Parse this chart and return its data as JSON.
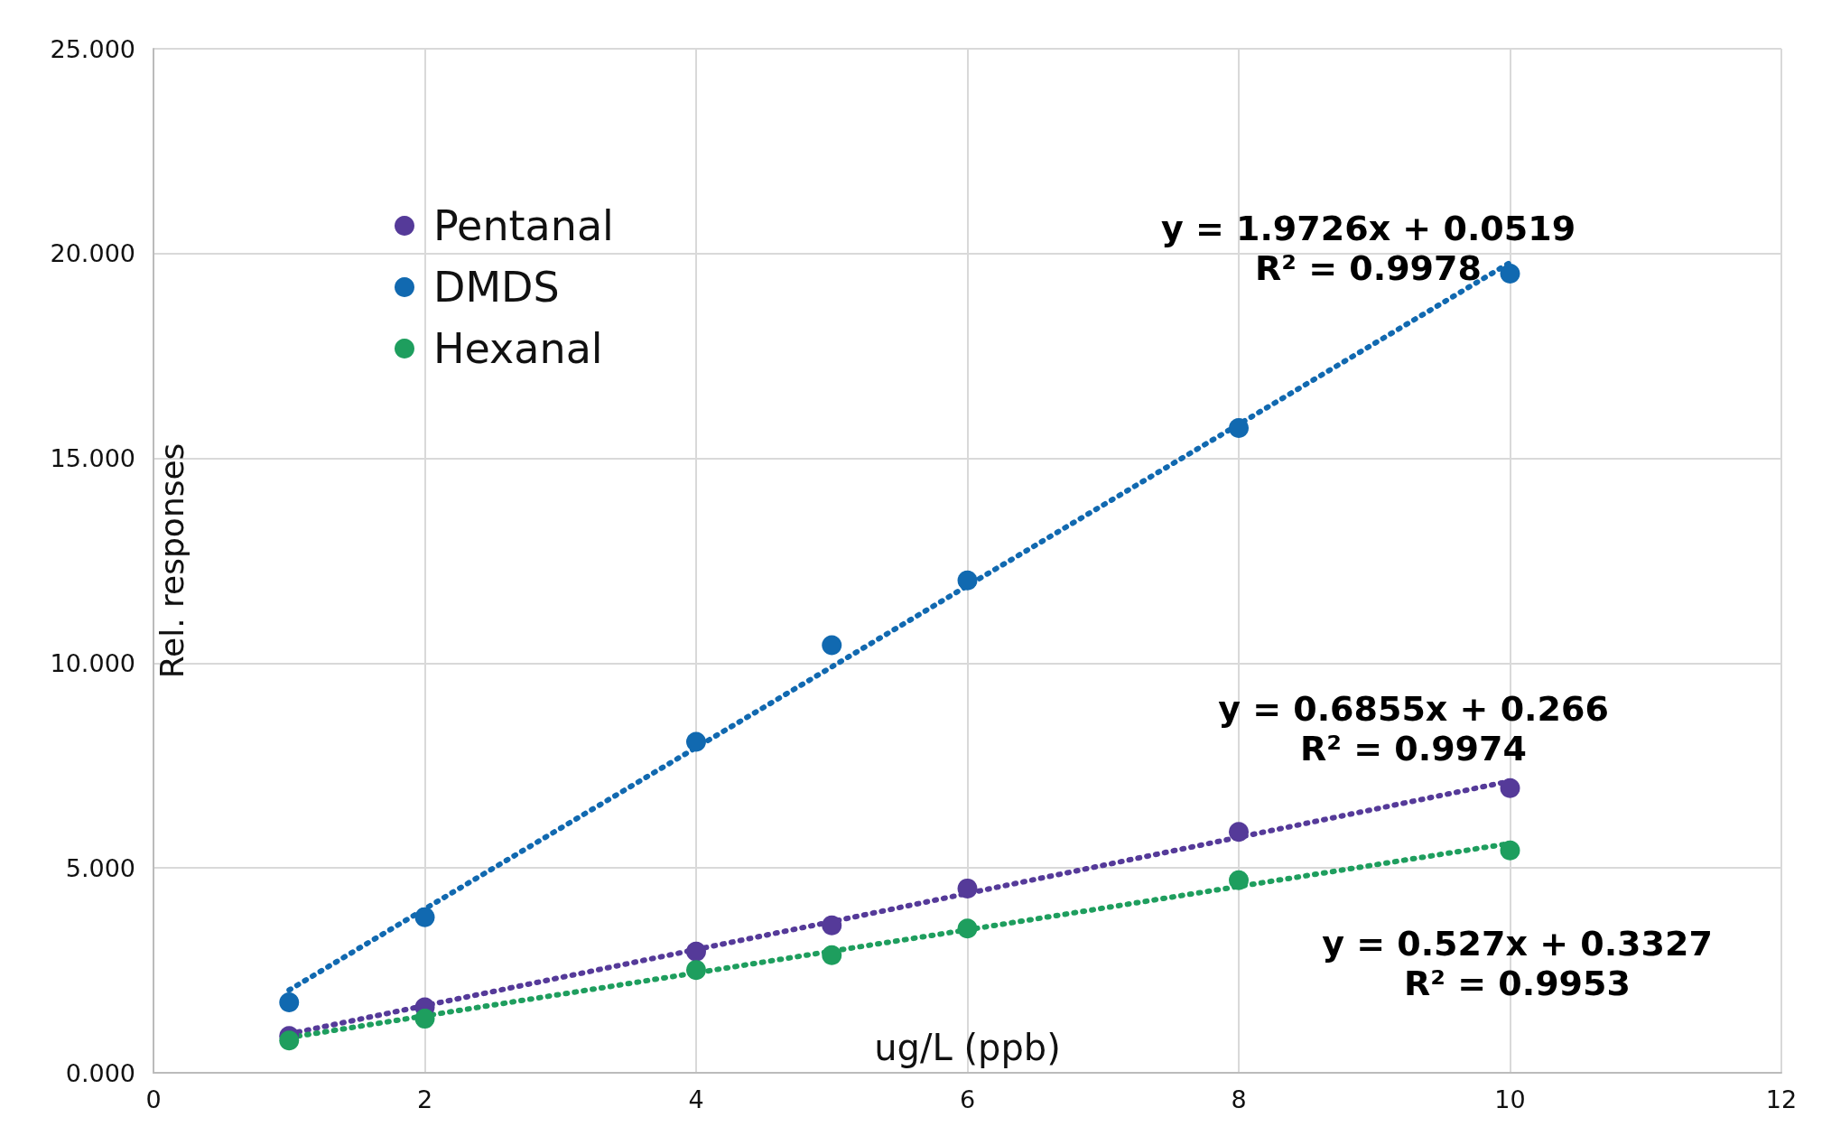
{
  "chart_data": {
    "type": "scatter",
    "xlabel": "ug/L (ppb)",
    "ylabel": "Rel. responses",
    "x": [
      1,
      2,
      4,
      5,
      6,
      8,
      10
    ],
    "series": [
      {
        "name": "Pentanal",
        "color": "#553a99",
        "values": [
          0.9,
          1.6,
          2.96,
          3.6,
          4.5,
          5.88,
          6.95
        ]
      },
      {
        "name": "DMDS",
        "color": "#1169b0",
        "values": [
          1.72,
          3.8,
          8.08,
          10.44,
          12.02,
          15.74,
          19.51
        ]
      },
      {
        "name": "Hexanal",
        "color": "#1e9e5e",
        "values": [
          0.79,
          1.32,
          2.51,
          2.87,
          3.52,
          4.7,
          5.43
        ]
      },
      {
        "type": "line",
        "color": "#553a99",
        "values": [
          0.95,
          1.64,
          3.01,
          3.69,
          4.38,
          5.75,
          7.12
        ],
        "line_style": "dotted",
        "marker": "none"
      },
      {
        "type": "line",
        "color": "#1169b0",
        "values": [
          2.02,
          4.0,
          7.94,
          9.91,
          11.89,
          15.83,
          19.78
        ],
        "line_style": "dotted",
        "marker": "none"
      },
      {
        "type": "line",
        "color": "#1e9e5e",
        "values": [
          0.86,
          1.39,
          2.44,
          2.97,
          3.49,
          4.55,
          5.6
        ],
        "line_style": "dotted",
        "marker": "none"
      }
    ],
    "xlim": [
      0,
      12
    ],
    "xticks": [
      0,
      2,
      4,
      6,
      8,
      10,
      12
    ],
    "ylim": [
      0,
      25
    ],
    "yticks": [
      {
        "value": 0,
        "label": "0.000"
      },
      {
        "value": 5,
        "label": "5.000"
      },
      {
        "value": 10,
        "label": "10.000"
      },
      {
        "value": 15,
        "label": "15.000"
      },
      {
        "value": 20,
        "label": "20.000"
      },
      {
        "value": 25,
        "label": "25.000"
      }
    ],
    "annotations": [
      "y = 0.6855x + 0.266\nR² = 0.9974",
      "y = 1.9726x + 0.0519\nR² = 0.9978",
      "y = 0.527x + 0.3327\nR² = 0.9953"
    ],
    "grid": true,
    "legend": "top left",
    "marker": "circle"
  }
}
